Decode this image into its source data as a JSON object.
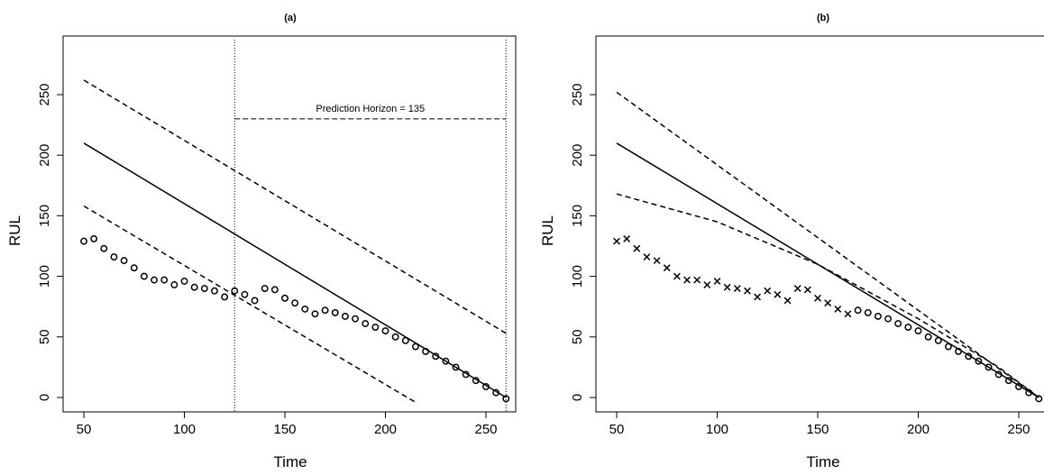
{
  "chart_data": [
    {
      "type": "scatter",
      "title": "(a)",
      "xlabel": "Time",
      "ylabel": "RUL",
      "xlim": [
        50,
        260
      ],
      "ylim": [
        0,
        250
      ],
      "xticks": [
        50,
        100,
        150,
        200,
        250
      ],
      "yticks": [
        0,
        50,
        100,
        150,
        200,
        250
      ],
      "grid": false,
      "annotation": {
        "text": "Prediction Horizon = 135",
        "start_time": 125,
        "end_time": 260,
        "bar_y": 230
      },
      "series": [
        {
          "style": "solid-line",
          "x": [
            50,
            260
          ],
          "y": [
            210,
            0
          ]
        },
        {
          "style": "dashed-line",
          "x": [
            50,
            260
          ],
          "y": [
            262,
            53
          ]
        },
        {
          "style": "dashed-line",
          "x": [
            50,
            216
          ],
          "y": [
            158,
            -5
          ]
        },
        {
          "style": "circle-markers",
          "x": [
            50,
            55,
            60,
            65,
            70,
            75,
            80,
            85,
            90,
            95,
            100,
            105,
            110,
            115,
            120,
            125,
            130,
            135,
            140,
            145,
            150,
            155,
            160,
            165,
            170,
            175,
            180,
            185,
            190,
            195,
            200,
            205,
            210,
            215,
            220,
            225,
            230,
            235,
            240,
            245,
            250,
            255,
            260
          ],
          "y": [
            129,
            131,
            123,
            116,
            113,
            107,
            100,
            97,
            97,
            93,
            96,
            91,
            90,
            88,
            83,
            88,
            85,
            80,
            90,
            89,
            82,
            78,
            73,
            69,
            72,
            70,
            67,
            65,
            61,
            58,
            55,
            50,
            47,
            42,
            38,
            34,
            30,
            25,
            19,
            14,
            9,
            4,
            -1
          ]
        }
      ]
    },
    {
      "type": "scatter",
      "title": "(b)",
      "xlabel": "Time",
      "ylabel": "RUL",
      "xlim": [
        50,
        260
      ],
      "ylim": [
        0,
        250
      ],
      "xticks": [
        50,
        100,
        150,
        200,
        250
      ],
      "yticks": [
        0,
        50,
        100,
        150,
        200,
        250
      ],
      "grid": false,
      "series": [
        {
          "style": "solid-line",
          "x": [
            50,
            260
          ],
          "y": [
            210,
            0
          ]
        },
        {
          "style": "dashed-line",
          "x": [
            50,
            260
          ],
          "y": [
            252,
            0
          ]
        },
        {
          "style": "dashed-line",
          "x": [
            50,
            100,
            150,
            200,
            240,
            260
          ],
          "y": [
            168,
            145,
            110,
            65,
            25,
            0
          ]
        },
        {
          "style": "cross-markers",
          "x": [
            50,
            55,
            60,
            65,
            70,
            75,
            80,
            85,
            90,
            95,
            100,
            105,
            110,
            115,
            120,
            125,
            130,
            135,
            140,
            145,
            150,
            155,
            160,
            165
          ],
          "y": [
            129,
            131,
            123,
            116,
            113,
            107,
            100,
            97,
            97,
            93,
            96,
            91,
            90,
            88,
            83,
            88,
            85,
            80,
            90,
            89,
            82,
            78,
            73,
            69
          ]
        },
        {
          "style": "circle-markers",
          "x": [
            170,
            175,
            180,
            185,
            190,
            195,
            200,
            205,
            210,
            215,
            220,
            225,
            230,
            235,
            240,
            245,
            250,
            255,
            260
          ],
          "y": [
            72,
            70,
            67,
            65,
            61,
            58,
            55,
            50,
            47,
            42,
            38,
            34,
            30,
            25,
            19,
            14,
            9,
            4,
            -1
          ]
        }
      ]
    }
  ]
}
